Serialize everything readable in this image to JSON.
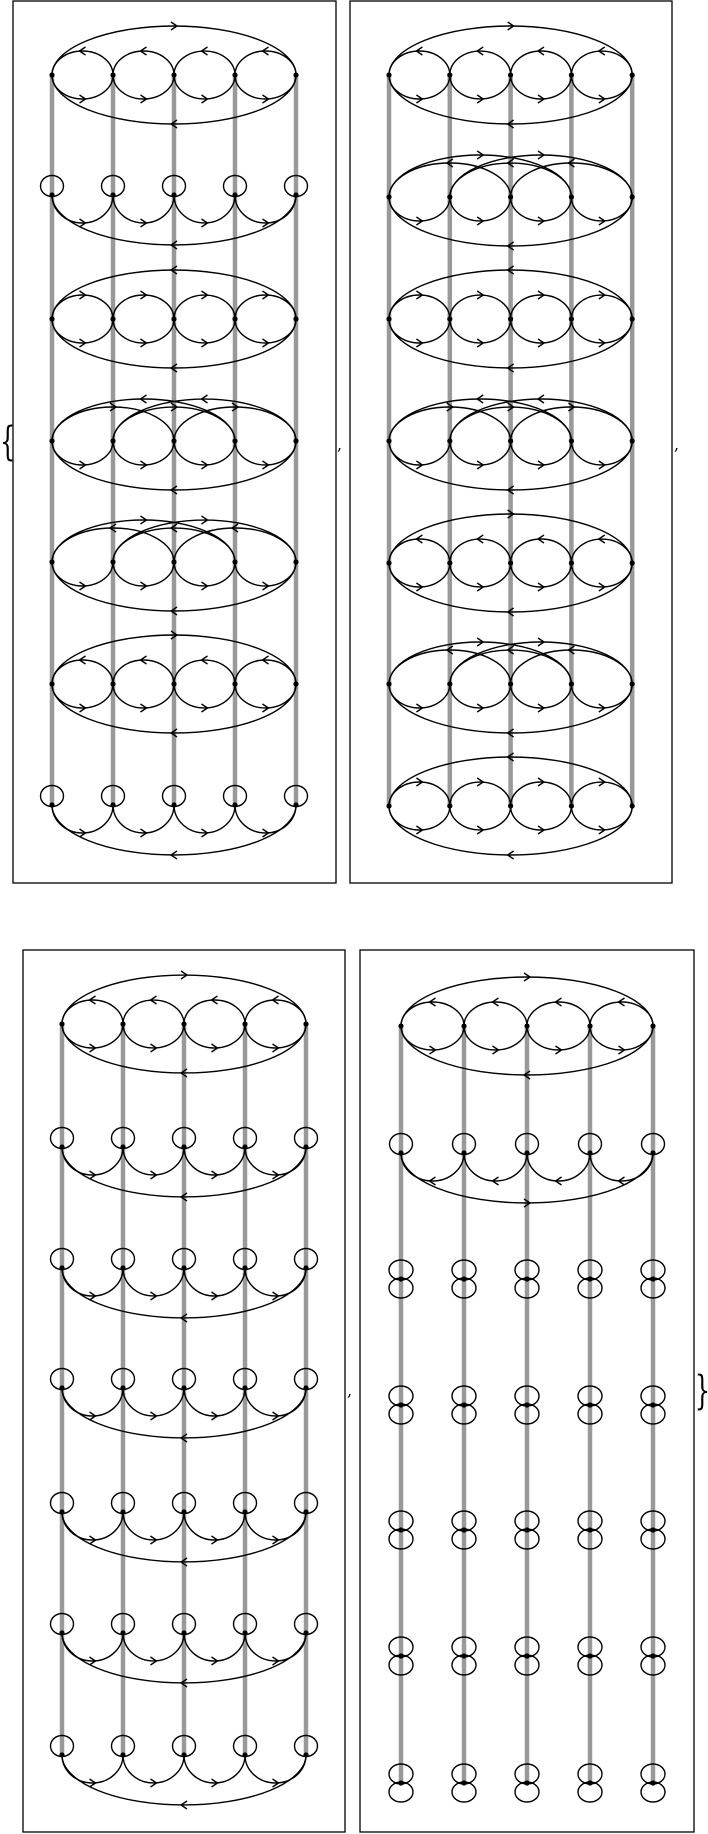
{
  "brackets": {
    "open": "{",
    "close": "}",
    "separators": [
      ",",
      ",",
      ","
    ]
  },
  "colors": {
    "edge": "#000000",
    "rail": "#999999",
    "node": "#000000",
    "frame": "#000000",
    "background": "#ffffff"
  },
  "panels": [
    {
      "rows": [
        {
          "type": "ring",
          "inner_top": "left",
          "inner_bottom": "right",
          "outer_top": "right",
          "outer_bottom": "left"
        },
        {
          "type": "loops",
          "bottom": "right",
          "outer_bottom": "left"
        },
        {
          "type": "ring",
          "inner_top": "right",
          "inner_bottom": "right",
          "outer_top": "left",
          "outer_bottom": "left"
        },
        {
          "type": "skip",
          "high": "left",
          "low": "right",
          "bottom": "right",
          "outer_bottom": "left"
        },
        {
          "type": "skip",
          "high": "right",
          "low": "left",
          "bottom": "right",
          "outer_bottom": "left"
        },
        {
          "type": "ring",
          "inner_top": "left",
          "inner_bottom": "right",
          "outer_top": "right",
          "outer_bottom": "left"
        },
        {
          "type": "loops",
          "bottom": "right",
          "outer_bottom": "left"
        }
      ]
    },
    {
      "rows": [
        {
          "type": "ring",
          "inner_top": "left",
          "inner_bottom": "right",
          "outer_top": "right",
          "outer_bottom": "left"
        },
        {
          "type": "skip",
          "high": "right",
          "low": "left",
          "bottom": "right",
          "outer_bottom": "left"
        },
        {
          "type": "ring",
          "inner_top": "right",
          "inner_bottom": "right",
          "outer_top": "left",
          "outer_bottom": "left"
        },
        {
          "type": "skip",
          "high": "left",
          "low": "right",
          "bottom": "right",
          "outer_bottom": "left"
        },
        {
          "type": "ring",
          "inner_top": "left",
          "inner_bottom": "right",
          "outer_top": "right",
          "outer_bottom": "left"
        },
        {
          "type": "skip",
          "high": "right",
          "low": "left",
          "bottom": "right",
          "outer_bottom": "left"
        },
        {
          "type": "ring",
          "inner_top": "right",
          "inner_bottom": "right",
          "outer_top": "left",
          "outer_bottom": "left"
        }
      ]
    },
    {
      "rows": [
        {
          "type": "ring",
          "inner_top": "left",
          "inner_bottom": "right",
          "outer_top": "right",
          "outer_bottom": "left"
        },
        {
          "type": "loops",
          "bottom": "right",
          "outer_bottom": "left"
        },
        {
          "type": "loops",
          "bottom": "right",
          "outer_bottom": "left"
        },
        {
          "type": "loops",
          "bottom": "right",
          "outer_bottom": "left"
        },
        {
          "type": "loops",
          "bottom": "right",
          "outer_bottom": "left"
        },
        {
          "type": "loops",
          "bottom": "right",
          "outer_bottom": "left"
        },
        {
          "type": "loops",
          "bottom": "right",
          "outer_bottom": "left"
        }
      ]
    },
    {
      "rows": [
        {
          "type": "ring",
          "inner_top": "left",
          "inner_bottom": "right",
          "outer_top": "right",
          "outer_bottom": "left"
        },
        {
          "type": "loops",
          "bottom": "left",
          "outer_bottom": "right"
        },
        {
          "type": "double-loop"
        },
        {
          "type": "double-loop"
        },
        {
          "type": "double-loop"
        },
        {
          "type": "double-loop"
        },
        {
          "type": "double-loop"
        }
      ]
    }
  ]
}
